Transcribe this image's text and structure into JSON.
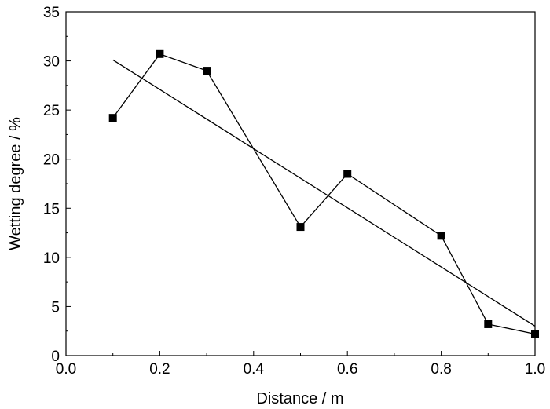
{
  "chart_data": {
    "type": "line",
    "xlabel": "Distance / m",
    "ylabel": "Wetting degree / %",
    "xlim": [
      0.0,
      1.0
    ],
    "ylim": [
      0,
      35
    ],
    "x_ticks": [
      "0.0",
      "0.2",
      "0.4",
      "0.6",
      "0.8",
      "1.0"
    ],
    "y_ticks": [
      "0",
      "5",
      "10",
      "15",
      "20",
      "25",
      "30",
      "35"
    ],
    "grid": false,
    "legend": "none",
    "series": [
      {
        "kind": "line-markers",
        "marker": "square",
        "x": [
          0.1,
          0.2,
          0.3,
          0.5,
          0.6,
          0.8,
          0.9,
          1.0
        ],
        "y": [
          24.2,
          30.7,
          29.0,
          13.1,
          18.5,
          12.2,
          3.2,
          2.2
        ]
      },
      {
        "kind": "linear-fit",
        "x": [
          0.1,
          1.0
        ],
        "y": [
          30.1,
          3.0
        ]
      }
    ],
    "colors": {
      "line": "#000000",
      "marker": "#000000"
    }
  }
}
